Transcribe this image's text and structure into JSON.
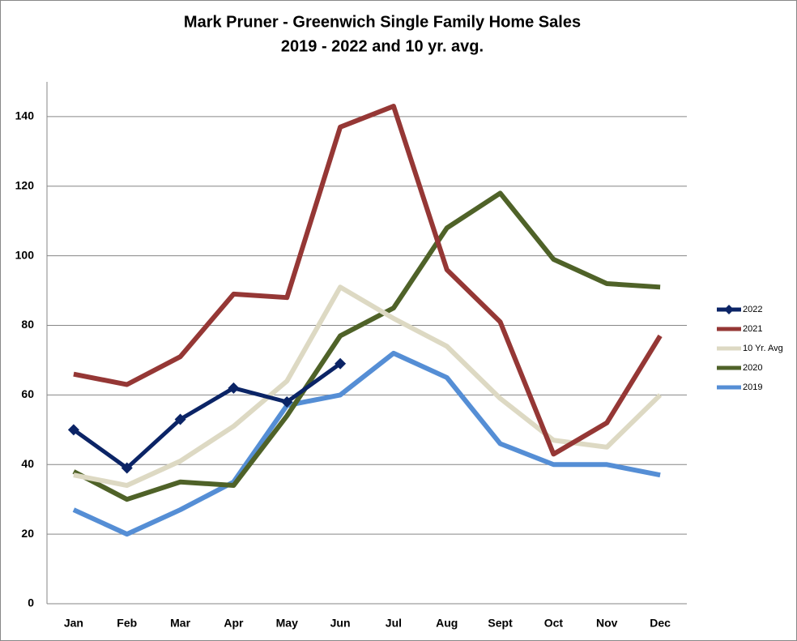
{
  "chart_data": {
    "type": "line",
    "title": "Mark Pruner - Greenwich Single Family Home Sales",
    "subtitle": "2019 - 2022 and 10 yr. avg.",
    "categories": [
      "Jan",
      "Feb",
      "Mar",
      "Apr",
      "May",
      "Jun",
      "Jul",
      "Aug",
      "Sept",
      "Oct",
      "Nov",
      "Dec"
    ],
    "series": [
      {
        "name": "2022",
        "color": "#0b2466",
        "marker": "diamond",
        "values": [
          50,
          39,
          53,
          62,
          58,
          69,
          null,
          null,
          null,
          null,
          null,
          null
        ]
      },
      {
        "name": "2021",
        "color": "#953735",
        "values": [
          66,
          63,
          71,
          89,
          88,
          137,
          143,
          96,
          81,
          43,
          52,
          77
        ]
      },
      {
        "name": "10 Yr. Avg",
        "color": "#ddd9c3",
        "values": [
          37,
          34,
          41,
          51,
          64,
          91,
          82,
          74,
          59,
          47,
          45,
          60
        ]
      },
      {
        "name": "2020",
        "color": "#4f6228",
        "values": [
          38,
          30,
          35,
          34,
          54,
          77,
          85,
          108,
          118,
          99,
          92,
          91
        ]
      },
      {
        "name": "2019",
        "color": "#558ed5",
        "values": [
          27,
          20,
          27,
          35,
          57,
          60,
          72,
          65,
          46,
          40,
          40,
          37
        ]
      }
    ],
    "ylim": [
      0,
      150
    ],
    "yticks": [
      0,
      20,
      40,
      60,
      80,
      100,
      120,
      140
    ],
    "grid": true,
    "legend": "right"
  }
}
